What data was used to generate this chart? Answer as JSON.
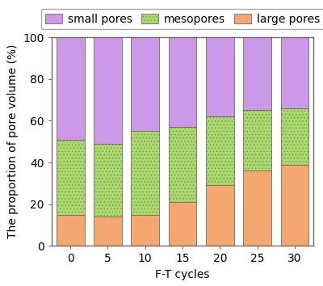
{
  "categories": [
    "0",
    "5",
    "10",
    "15",
    "20",
    "25",
    "30"
  ],
  "large_pores": [
    15,
    14,
    15,
    21,
    29,
    36,
    39
  ],
  "mesopores": [
    36,
    35,
    40,
    36,
    33,
    29,
    27
  ],
  "small_pores": [
    49,
    51,
    45,
    43,
    38,
    35,
    34
  ],
  "colors": {
    "large_pores": "#F4A770",
    "mesopores": "#A8D96C",
    "small_pores": "#CC99E8"
  },
  "xlabel": "F-T cycles",
  "ylabel": "The proportion of pore volume (%)",
  "ylim": [
    0,
    100
  ],
  "yticks": [
    0,
    20,
    40,
    60,
    80,
    100
  ],
  "bar_width": 0.75,
  "edge_color": "#7a6a5a",
  "edge_linewidth": 0.6,
  "background_color": "#ffffff",
  "label_fontsize": 10,
  "tick_fontsize": 10,
  "legend_fontsize": 10
}
